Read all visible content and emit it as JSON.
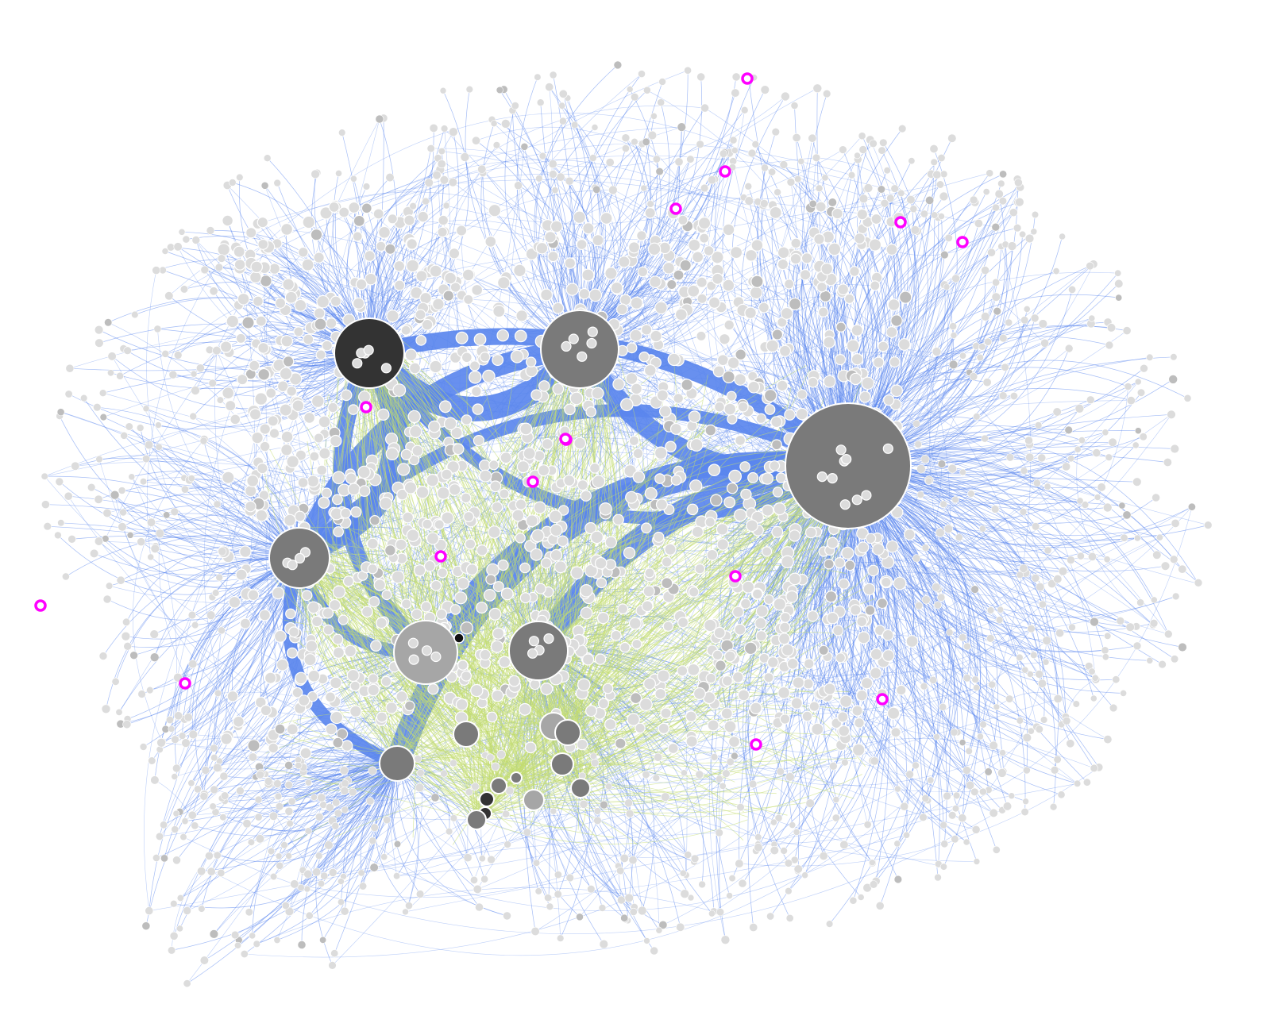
{
  "diagram": {
    "type": "network-graph",
    "layout": "force-directed",
    "background": "#ffffff",
    "colors": {
      "edge_primary": "#5b87ee",
      "edge_secondary": "#c3dc6f",
      "node_leaf": "#dcdcdc",
      "node_leaf_alt": "#bdbdbd",
      "node_stroke": "#ffffff",
      "hub_dark": "#333333",
      "hub_mid": "#7a7a7a",
      "hub_light": "#a6a6a6",
      "highlight_ring": "#ff00ff"
    },
    "hub_shades": [
      "dark",
      "mid",
      "mid",
      "mid",
      "light",
      "mid",
      "mid",
      "mid",
      "light",
      "mid",
      "mid",
      "mid",
      "dark",
      "mid",
      "light",
      "dark",
      "mid",
      "mid"
    ],
    "highlighted_node_count": 15,
    "labels_visible": false
  }
}
